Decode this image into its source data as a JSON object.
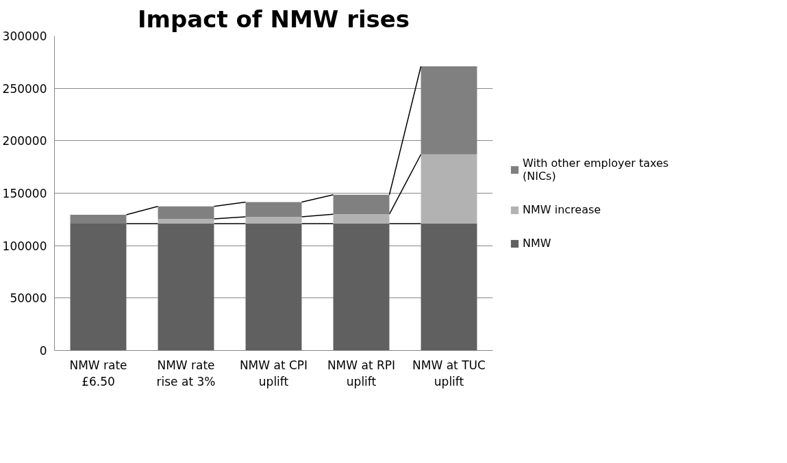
{
  "chart_data": {
    "type": "bar",
    "title": "Impact of NMW rises",
    "stacked": true,
    "categories": [
      "NMW rate £6.50",
      "NMW rate rise at 3%",
      "NMW at CPI uplift",
      "NMW at RPI uplift",
      "NMW at TUC uplift"
    ],
    "series": [
      {
        "name": "NMW",
        "color": "#606060",
        "values": [
          121000,
          121000,
          121000,
          121000,
          121000
        ]
      },
      {
        "name": "NMW increase",
        "color": "#b2b2b2",
        "values": [
          0,
          4500,
          6500,
          9000,
          66000
        ]
      },
      {
        "name": "With other employer taxes (NICs)",
        "color": "#808080",
        "values": [
          8500,
          12000,
          14000,
          18500,
          84000
        ]
      }
    ],
    "ylim": [
      0,
      300000
    ],
    "yticks": [
      0,
      50000,
      100000,
      150000,
      200000,
      250000,
      300000
    ],
    "grid": "y",
    "legend": "right"
  }
}
